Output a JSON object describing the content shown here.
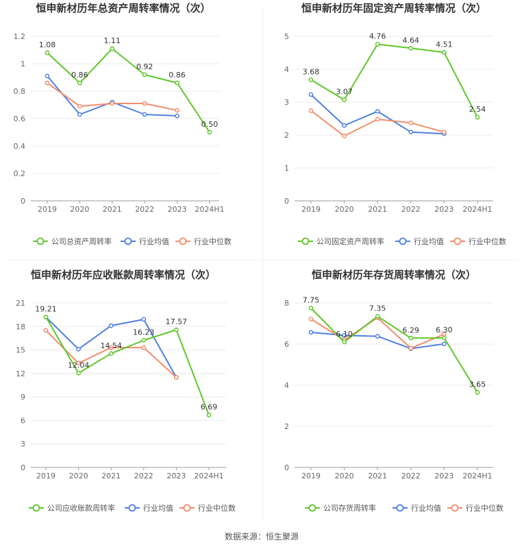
{
  "footer": {
    "source": "数据来源：恒生聚源"
  },
  "colors": {
    "company": "#5ec62a",
    "avg": "#4f7fe0",
    "median": "#f28c6b",
    "grid": "#e8e8e8",
    "axis": "#999999"
  },
  "chart_data": [
    {
      "type": "line",
      "title": "恒申新材历年总资产周转率情况（次）",
      "categories": [
        "2019",
        "2020",
        "2021",
        "2022",
        "2023",
        "2024H1"
      ],
      "y_ticks": [
        "0",
        "0.2",
        "0.4",
        "0.6",
        "0.8",
        "1",
        "1.2"
      ],
      "ylim": [
        0,
        1.2
      ],
      "series": [
        {
          "name": "公司总资产周转率",
          "key": "company",
          "values": [
            1.08,
            0.86,
            1.11,
            0.92,
            0.86,
            0.5
          ],
          "labels": [
            "1.08",
            "0.86",
            "1.11",
            "0.92",
            "0.86",
            "0.50"
          ]
        },
        {
          "name": "行业均值",
          "key": "avg",
          "values": [
            0.91,
            0.63,
            0.72,
            0.63,
            0.62,
            null
          ]
        },
        {
          "name": "行业中位数",
          "key": "median",
          "values": [
            0.86,
            0.69,
            0.71,
            0.71,
            0.66,
            null
          ]
        }
      ]
    },
    {
      "type": "line",
      "title": "恒申新材历年固定资产周转率情况（次）",
      "categories": [
        "2019",
        "2020",
        "2021",
        "2022",
        "2023",
        "2024H1"
      ],
      "y_ticks": [
        "0",
        "1",
        "2",
        "3",
        "4",
        "5"
      ],
      "ylim": [
        0,
        5
      ],
      "series": [
        {
          "name": "公司固定资产周转率",
          "key": "company",
          "values": [
            3.68,
            3.07,
            4.76,
            4.64,
            4.51,
            2.54
          ],
          "labels": [
            "3.68",
            "3.07",
            "4.76",
            "4.64",
            "4.51",
            "2.54"
          ]
        },
        {
          "name": "行业均值",
          "key": "avg",
          "values": [
            3.23,
            2.29,
            2.72,
            2.09,
            2.04,
            null
          ]
        },
        {
          "name": "行业中位数",
          "key": "median",
          "values": [
            2.74,
            1.97,
            2.48,
            2.37,
            2.09,
            null
          ]
        }
      ]
    },
    {
      "type": "line",
      "title": "恒申新材历年应收账款周转率情况（次）",
      "categories": [
        "2019",
        "2020",
        "2021",
        "2022",
        "2023",
        "2024H1"
      ],
      "y_ticks": [
        "0",
        "3",
        "6",
        "9",
        "12",
        "15",
        "18",
        "21"
      ],
      "ylim": [
        0,
        21
      ],
      "series": [
        {
          "name": "公司应收账款周转率",
          "key": "company",
          "values": [
            19.21,
            12.04,
            14.54,
            16.23,
            17.57,
            6.69
          ],
          "labels": [
            "19.21",
            "12.04",
            "14.54",
            "16.23",
            "17.57",
            "6.69"
          ]
        },
        {
          "name": "行业均值",
          "key": "avg",
          "values": [
            19.2,
            15.1,
            18.1,
            18.9,
            11.5,
            null
          ]
        },
        {
          "name": "行业中位数",
          "key": "median",
          "values": [
            17.5,
            13.3,
            15.3,
            15.3,
            11.5,
            null
          ]
        }
      ]
    },
    {
      "type": "line",
      "title": "恒申新材历年存货周转率情况（次）",
      "categories": [
        "2019",
        "2020",
        "2021",
        "2022",
        "2023",
        "2024H1"
      ],
      "y_ticks": [
        "0",
        "2",
        "4",
        "6",
        "8"
      ],
      "ylim": [
        0,
        8
      ],
      "series": [
        {
          "name": "公司存货周转率",
          "key": "company",
          "values": [
            7.75,
            6.1,
            7.35,
            6.29,
            6.3,
            3.65
          ],
          "labels": [
            "7.75",
            "6.10",
            "7.35",
            "6.29",
            "6.30",
            "3.65"
          ]
        },
        {
          "name": "行业均值",
          "key": "avg",
          "values": [
            6.57,
            6.42,
            6.38,
            5.78,
            6.01,
            null
          ]
        },
        {
          "name": "行业中位数",
          "key": "median",
          "values": [
            7.22,
            6.2,
            7.28,
            5.8,
            6.48,
            null
          ]
        }
      ]
    }
  ]
}
